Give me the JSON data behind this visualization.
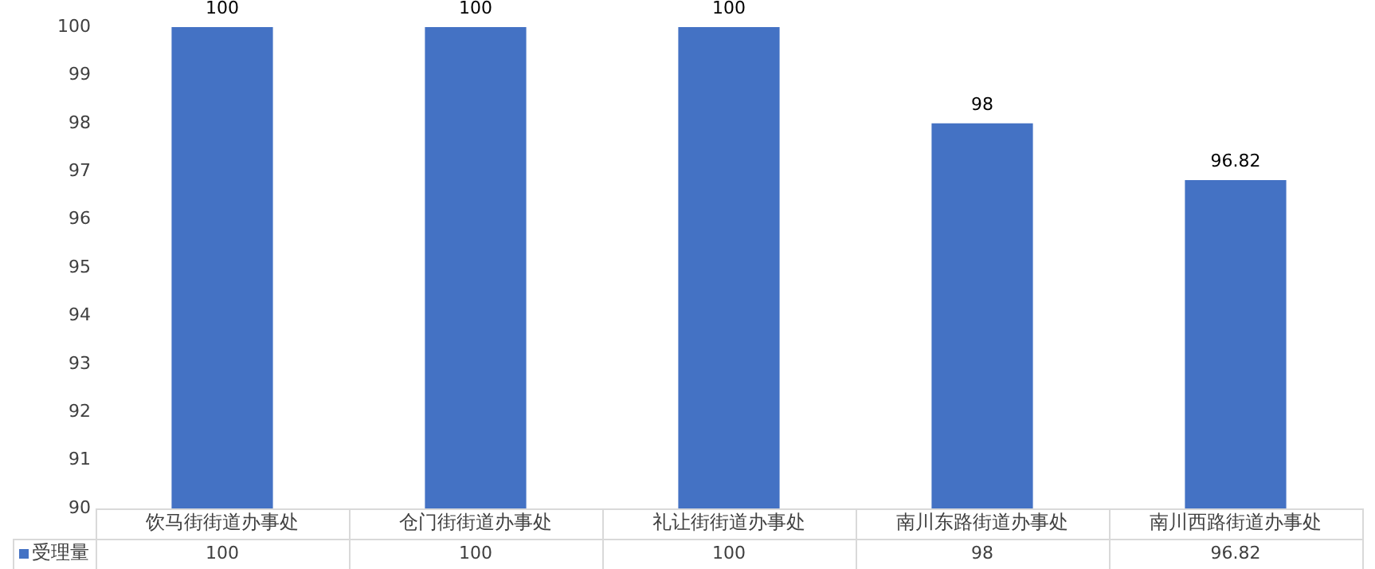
{
  "chart_data": {
    "type": "bar",
    "categories": [
      "饮马街街道办事处",
      "仓门街街道办事处",
      "礼让街街道办事处",
      "南川东路街道办事处",
      "南川西路街道办事处"
    ],
    "series": [
      {
        "name": "受理量",
        "color": "#4472c4",
        "values": [
          100,
          100,
          100,
          98,
          96.82
        ]
      }
    ],
    "ylim": [
      90,
      100
    ],
    "yticks": [
      90,
      91,
      92,
      93,
      94,
      95,
      96,
      97,
      98,
      99,
      100
    ],
    "grid": false,
    "legend": "bottom",
    "data_labels": true,
    "annotations": [
      "100",
      "100",
      "100",
      "98",
      "96.82"
    ]
  }
}
